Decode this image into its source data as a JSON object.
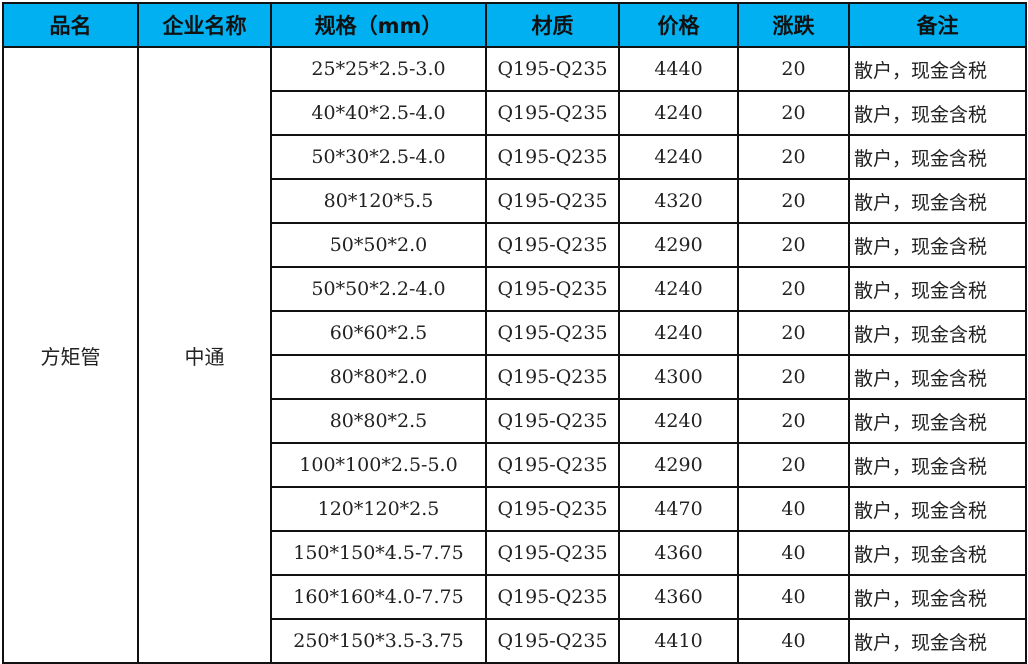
{
  "headers": [
    "品名",
    "企业名称",
    "规格（mm）",
    "材质",
    "价格",
    "涨跌",
    "备注"
  ],
  "product": "方矩管",
  "company": "中通",
  "header_color": "#00B0F0",
  "rows": [
    {
      "spec": "25*25*2.5-3.0",
      "material": "Q195-Q235",
      "price": "4440",
      "change": "20",
      "remark": "散户，现金含税"
    },
    {
      "spec": "40*40*2.5-4.0",
      "material": "Q195-Q235",
      "price": "4240",
      "change": "20",
      "remark": "散户，现金含税"
    },
    {
      "spec": "50*30*2.5-4.0",
      "material": "Q195-Q235",
      "price": "4240",
      "change": "20",
      "remark": "散户，现金含税"
    },
    {
      "spec": "80*120*5.5",
      "material": "Q195-Q235",
      "price": "4320",
      "change": "20",
      "remark": "散户，现金含税"
    },
    {
      "spec": "50*50*2.0",
      "material": "Q195-Q235",
      "price": "4290",
      "change": "20",
      "remark": "散户，现金含税"
    },
    {
      "spec": "50*50*2.2-4.0",
      "material": "Q195-Q235",
      "price": "4240",
      "change": "20",
      "remark": "散户，现金含税"
    },
    {
      "spec": "60*60*2.5",
      "material": "Q195-Q235",
      "price": "4240",
      "change": "20",
      "remark": "散户，现金含税"
    },
    {
      "spec": "80*80*2.0",
      "material": "Q195-Q235",
      "price": "4300",
      "change": "20",
      "remark": "散户，现金含税"
    },
    {
      "spec": "80*80*2.5",
      "material": "Q195-Q235",
      "price": "4240",
      "change": "20",
      "remark": "散户，现金含税"
    },
    {
      "spec": "100*100*2.5-5.0",
      "material": "Q195-Q235",
      "price": "4290",
      "change": "20",
      "remark": "散户，现金含税"
    },
    {
      "spec": "120*120*2.5",
      "material": "Q195-Q235",
      "price": "4470",
      "change": "40",
      "remark": "散户，现金含税"
    },
    {
      "spec": "150*150*4.5-7.75",
      "material": "Q195-Q235",
      "price": "4360",
      "change": "40",
      "remark": "散户，现金含税"
    },
    {
      "spec": "160*160*4.0-7.75",
      "material": "Q195-Q235",
      "price": "4360",
      "change": "40",
      "remark": "散户，现金含税"
    },
    {
      "spec": "250*150*3.5-3.75",
      "material": "Q195-Q235",
      "price": "4410",
      "change": "40",
      "remark": "散户，现金含税"
    }
  ]
}
